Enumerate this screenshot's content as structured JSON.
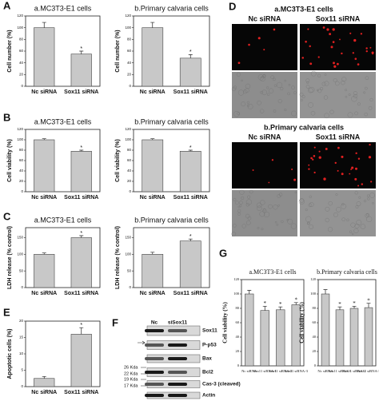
{
  "chart_data": [
    {
      "type": "bar",
      "title": "a.MC3T3-E1 cells",
      "y_label": "Cell number (%)",
      "categories": [
        "Nc siRNA",
        "Sox11 siRNA"
      ],
      "values": [
        100,
        55
      ],
      "errors": [
        9,
        5
      ],
      "stars": [
        null,
        "*"
      ],
      "ylim": [
        0,
        120
      ],
      "yticks": [
        0,
        20,
        40,
        60,
        80,
        100,
        120
      ],
      "color": "#c8c8c8"
    },
    {
      "type": "bar",
      "title": "b.Primary calvaria cells",
      "y_label": "Cell number (%)",
      "categories": [
        "Nc siRNA",
        "Sox11 siRNA"
      ],
      "values": [
        100,
        48
      ],
      "errors": [
        9,
        6
      ],
      "stars": [
        null,
        "*"
      ],
      "ylim": [
        0,
        120
      ],
      "yticks": [
        0,
        20,
        40,
        60,
        80,
        100,
        120
      ],
      "color": "#c8c8c8"
    },
    {
      "type": "bar",
      "title": "a.MC3T3-E1 cells",
      "y_label": "Cell viability (%)",
      "categories": [
        "Nc siRNA",
        "Sox11 siRNA"
      ],
      "values": [
        100,
        78
      ],
      "errors": [
        2,
        2
      ],
      "stars": [
        null,
        "*"
      ],
      "ylim": [
        0,
        120
      ],
      "yticks": [
        0,
        20,
        40,
        60,
        80,
        100,
        120
      ],
      "color": "#c8c8c8"
    },
    {
      "type": "bar",
      "title": "b.Primary calvaria cells",
      "y_label": "Cell viability (%)",
      "categories": [
        "Nc siRNA",
        "Sox11 siRNA"
      ],
      "values": [
        100,
        78
      ],
      "errors": [
        2,
        2
      ],
      "stars": [
        null,
        "*"
      ],
      "ylim": [
        0,
        120
      ],
      "yticks": [
        0,
        20,
        40,
        60,
        80,
        100,
        120
      ],
      "color": "#c8c8c8"
    },
    {
      "type": "bar",
      "title": "a.MC3T3-E1 cells",
      "y_label": "LDH release (% control)",
      "categories": [
        "Nc siRNA",
        "Sox11 siRNA"
      ],
      "values": [
        100,
        150
      ],
      "errors": [
        4,
        6
      ],
      "stars": [
        null,
        "*"
      ],
      "ylim": [
        0,
        180
      ],
      "yticks": [
        0,
        50,
        100,
        150
      ],
      "color": "#c8c8c8"
    },
    {
      "type": "bar",
      "title": "b.Primary calvaria cells",
      "y_label": "LDH release (% control)",
      "categories": [
        "Nc siRNA",
        "Sox11 siRNA"
      ],
      "values": [
        100,
        140
      ],
      "errors": [
        6,
        6
      ],
      "stars": [
        null,
        "*"
      ],
      "ylim": [
        0,
        180
      ],
      "yticks": [
        0,
        50,
        100,
        150
      ],
      "color": "#c8c8c8"
    },
    {
      "type": "bar",
      "y_label": "Apoptotic cells (%)",
      "categories": [
        "Nc siRNA",
        "Sox11 siRNA"
      ],
      "values": [
        2.5,
        16
      ],
      "errors": [
        0.6,
        2
      ],
      "stars": [
        null,
        "*"
      ],
      "ylim": [
        0,
        20
      ],
      "yticks": [
        0,
        5,
        10,
        15,
        20
      ],
      "color": "#c8c8c8"
    },
    {
      "type": "bar",
      "title": "a.MC3T3-E1 cells",
      "y_label": "Cell viability (%)",
      "categories": [
        "Nc siRNA",
        "Sox11 siRNA-1",
        "Sox11 siRNA-2",
        "Sox11 siRNA-3"
      ],
      "values": [
        100,
        77,
        78,
        85
      ],
      "errors": [
        5,
        6,
        4,
        3
      ],
      "stars": [
        null,
        "*",
        "*",
        "*"
      ],
      "ylim": [
        0,
        120
      ],
      "yticks": [
        0,
        20,
        40,
        60,
        80,
        100,
        120
      ],
      "color": "#c8c8c8"
    },
    {
      "type": "bar",
      "title": "b.Primary calvaria cells",
      "y_label": "Cell viability (%)",
      "categories": [
        "Nc siRNA",
        "Sox11 siRNA-1",
        "Sox11 siRNA-2",
        "Sox11 siRNA-3"
      ],
      "values": [
        100,
        78,
        80,
        81
      ],
      "errors": [
        6,
        4,
        3,
        6
      ],
      "stars": [
        null,
        "*",
        "*",
        "*"
      ],
      "ylim": [
        0,
        120
      ],
      "yticks": [
        0,
        20,
        40,
        60,
        80,
        100,
        120
      ],
      "color": "#c8c8c8"
    }
  ],
  "panel_labels": [
    "A",
    "B",
    "C",
    "D",
    "E",
    "F",
    "G"
  ],
  "microscopy": [
    {
      "title": "a.MC3T3-E1 cells",
      "columns": [
        "Nc siRNA",
        "Sox11 siRNA"
      ]
    },
    {
      "title": "b.Primary calvaria cells",
      "columns": [
        "Nc siRNA",
        "Sox11 siRNA"
      ]
    }
  ],
  "blot": {
    "lanes": [
      "Nc",
      "siSox11"
    ],
    "bands": [
      "Sox11",
      "P-p53",
      "Bax",
      "Bcl2",
      "Cas-3 (cleaved)",
      "Actin"
    ],
    "markers": [
      "26 Kda",
      "22 Kda",
      "19 Kda",
      "17 Kda"
    ]
  }
}
